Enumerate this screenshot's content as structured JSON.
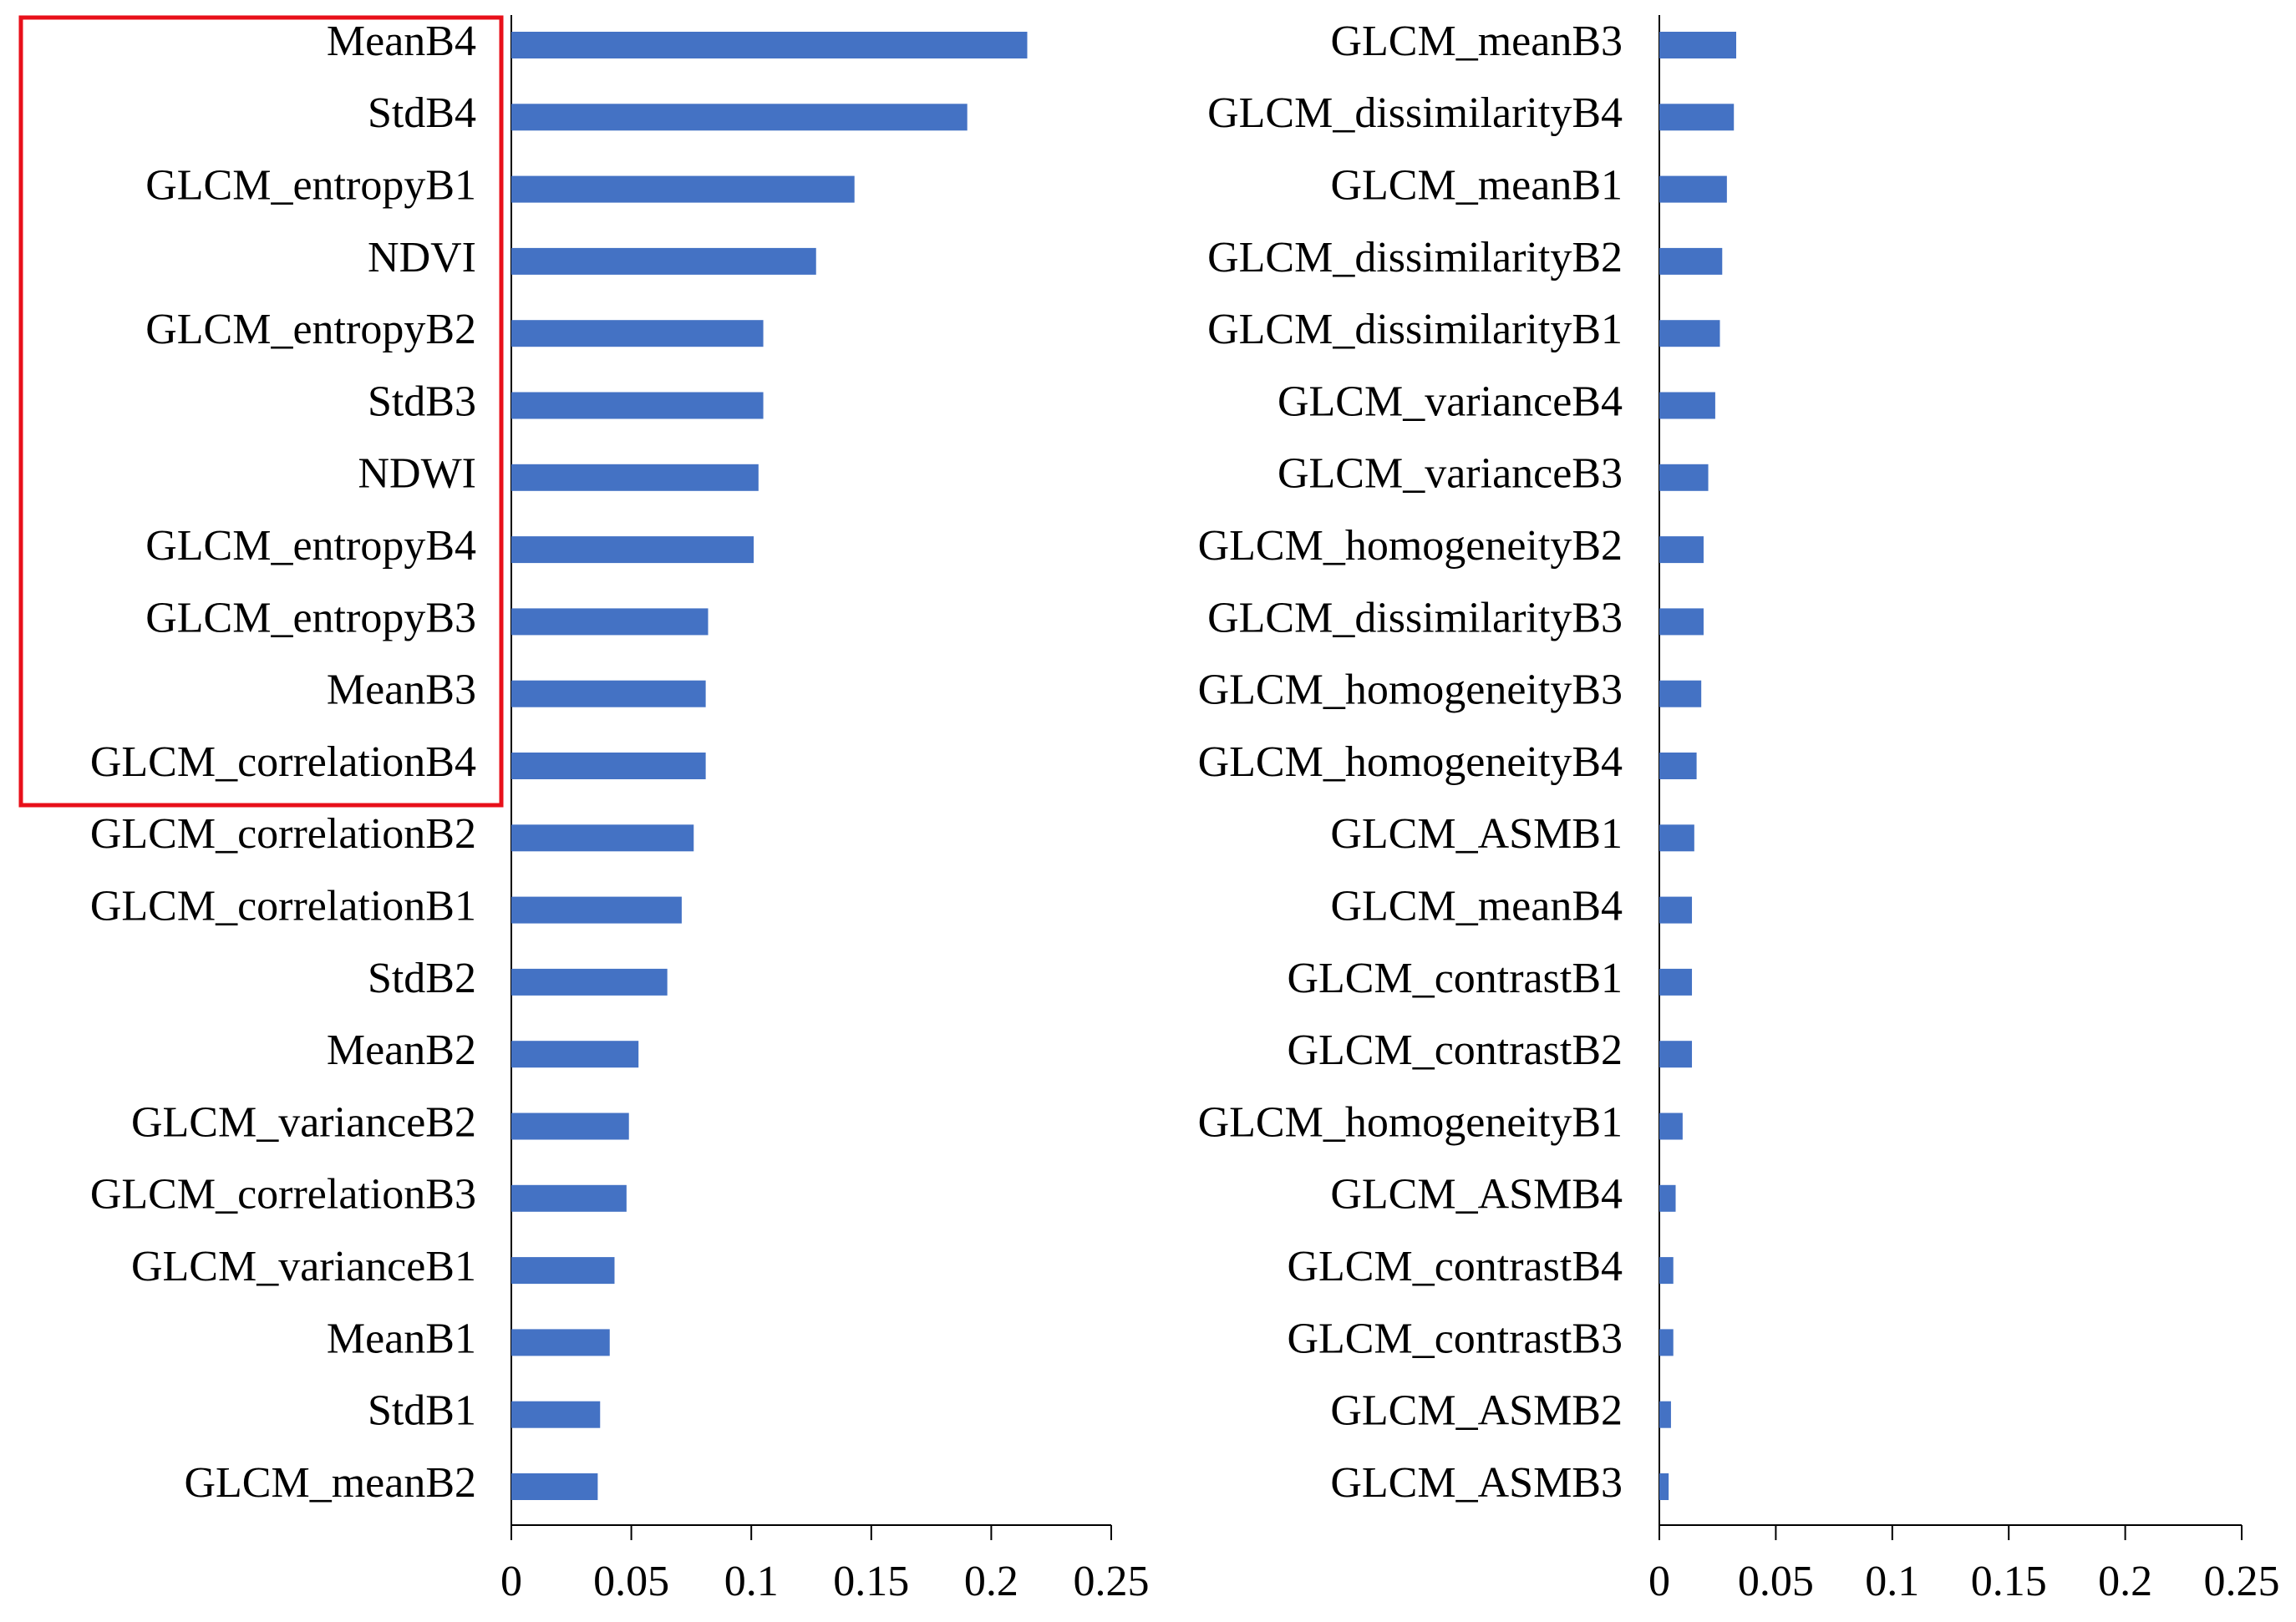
{
  "chart_data": [
    {
      "type": "bar",
      "orientation": "horizontal",
      "color": "#4472c4",
      "categories": [
        "MeanB4",
        "StdB4",
        "GLCM_entropyB1",
        "NDVI",
        "GLCM_entropyB2",
        "StdB3",
        "NDWI",
        "GLCM_entropyB4",
        "GLCM_entropyB3",
        "MeanB3",
        "GLCM_correlationB4",
        "GLCM_correlationB2",
        "GLCM_correlationB1",
        "StdB2",
        "MeanB2",
        "GLCM_varianceB2",
        "GLCM_correlationB3",
        "GLCM_varianceB1",
        "MeanB1",
        "StdB1",
        "GLCM_meanB2"
      ],
      "values": [
        0.215,
        0.19,
        0.143,
        0.127,
        0.105,
        0.105,
        0.103,
        0.101,
        0.082,
        0.081,
        0.081,
        0.076,
        0.071,
        0.065,
        0.053,
        0.049,
        0.048,
        0.043,
        0.041,
        0.037,
        0.036
      ],
      "xlim": [
        0,
        0.25
      ],
      "xticks": [
        0,
        0.05,
        0.1,
        0.15,
        0.2,
        0.25
      ]
    },
    {
      "type": "bar",
      "orientation": "horizontal",
      "color": "#4472c4",
      "categories": [
        "GLCM_meanB3",
        "GLCM_dissimilarityB4",
        "GLCM_meanB1",
        "GLCM_dissimilarityB2",
        "GLCM_dissimilarityB1",
        "GLCM_varianceB4",
        "GLCM_varianceB3",
        "GLCM_homogeneityB2",
        "GLCM_dissimilarityB3",
        "GLCM_homogeneityB3",
        "GLCM_homogeneityB4",
        "GLCM_ASMB1",
        "GLCM_meanB4",
        "GLCM_contrastB1",
        "GLCM_contrastB2",
        "GLCM_homogeneityB1",
        "GLCM_ASMB4",
        "GLCM_contrastB4",
        "GLCM_contrastB3",
        "GLCM_ASMB2",
        "GLCM_ASMB3"
      ],
      "values": [
        0.033,
        0.032,
        0.029,
        0.027,
        0.026,
        0.024,
        0.021,
        0.019,
        0.019,
        0.018,
        0.016,
        0.015,
        0.014,
        0.014,
        0.014,
        0.01,
        0.007,
        0.006,
        0.006,
        0.005,
        0.004
      ],
      "xlim": [
        0,
        0.25
      ],
      "xticks": [
        0,
        0.05,
        0.1,
        0.15,
        0.2,
        0.25
      ]
    }
  ]
}
